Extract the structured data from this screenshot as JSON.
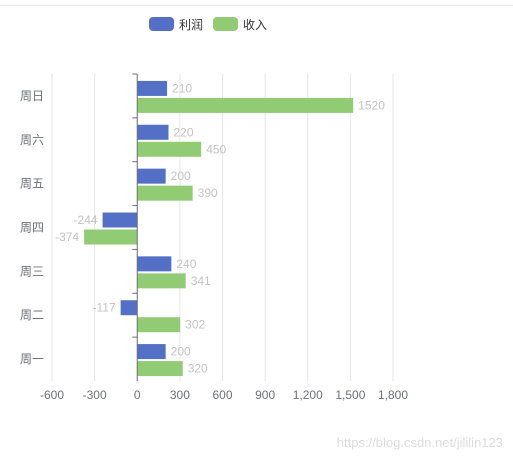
{
  "chart_data": {
    "type": "bar",
    "orientation": "horizontal",
    "categories": [
      "周日",
      "周六",
      "周五",
      "周四",
      "周三",
      "周二",
      "周一"
    ],
    "series": [
      {
        "name": "利润",
        "color": "#5470c6",
        "values": [
          210,
          220,
          200,
          -244,
          240,
          -117,
          200
        ]
      },
      {
        "name": "收入",
        "color": "#91cc75",
        "values": [
          1520,
          450,
          390,
          -374,
          341,
          302,
          320
        ]
      }
    ],
    "x_ticks": [
      "-600",
      "-300",
      "0",
      "300",
      "600",
      "900",
      "1,200",
      "1,500",
      "1,800"
    ],
    "xlim": [
      -600,
      1800
    ],
    "data_labels": true,
    "legend_position": "top-center",
    "grid": "vertical lines"
  },
  "watermark": "https://blog.csdn.net/jililin123"
}
